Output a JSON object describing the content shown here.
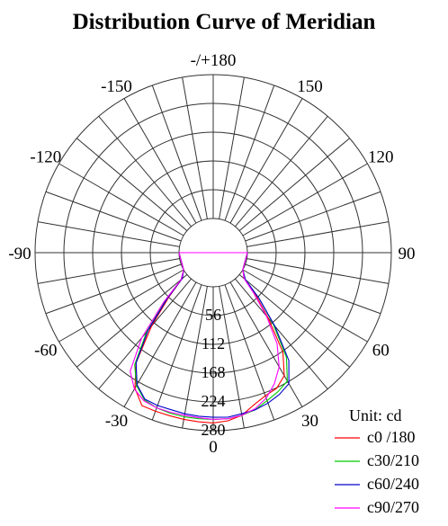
{
  "chart_data": {
    "type": "polar-line",
    "title": "Distribution Curve of  Meridian",
    "unit_label": "Unit: cd",
    "angle_ticks": [
      {
        "angle": 180,
        "label": "-/+180"
      },
      {
        "angle": 150,
        "label": "150"
      },
      {
        "angle": 120,
        "label": "120"
      },
      {
        "angle": 90,
        "label": "90"
      },
      {
        "angle": 60,
        "label": "60"
      },
      {
        "angle": 30,
        "label": "30"
      },
      {
        "angle": 0,
        "label": "0"
      },
      {
        "angle": -30,
        "label": "-30"
      },
      {
        "angle": -60,
        "label": "-60"
      },
      {
        "angle": -90,
        "label": "-90"
      },
      {
        "angle": -120,
        "label": "-120"
      },
      {
        "angle": -150,
        "label": "-150"
      }
    ],
    "radial_ticks": [
      56,
      112,
      168,
      224,
      280
    ],
    "radial_tick_labels": [
      "56",
      "112",
      "168",
      "224",
      "280"
    ],
    "rmax": 280,
    "spoke_step_deg": 10,
    "series": [
      {
        "name": "c0 /180",
        "color": "#ff0000",
        "angles": [
          -90,
          -60,
          -50,
          -45,
          -40,
          -35,
          -30,
          -25,
          -20,
          -15,
          -10,
          -5,
          0,
          5,
          10,
          15,
          20,
          25,
          30,
          35,
          40,
          45,
          50,
          60,
          90
        ],
        "values": [
          0,
          0,
          12,
          55,
          120,
          195,
          238,
          262,
          262,
          262,
          263,
          264,
          265,
          262,
          255,
          240,
          230,
          225,
          210,
          170,
          100,
          50,
          12,
          0,
          0
        ]
      },
      {
        "name": "c30/210",
        "color": "#00cc00",
        "angles": [
          -90,
          -60,
          -50,
          -45,
          -40,
          -35,
          -30,
          -25,
          -20,
          -15,
          -10,
          -5,
          0,
          5,
          10,
          15,
          20,
          25,
          30,
          35,
          40,
          45,
          50,
          60,
          90
        ],
        "values": [
          0,
          0,
          15,
          65,
          135,
          200,
          232,
          250,
          255,
          257,
          258,
          258,
          258,
          258,
          255,
          250,
          240,
          232,
          222,
          182,
          115,
          60,
          15,
          0,
          0
        ]
      },
      {
        "name": "c60/240",
        "color": "#0000cc",
        "angles": [
          -90,
          -60,
          -50,
          -45,
          -40,
          -35,
          -30,
          -25,
          -20,
          -15,
          -10,
          -5,
          0,
          5,
          10,
          15,
          20,
          25,
          30,
          35,
          40,
          45,
          50,
          60,
          90
        ],
        "values": [
          0,
          0,
          12,
          60,
          130,
          195,
          230,
          248,
          250,
          250,
          252,
          253,
          254,
          255,
          252,
          250,
          245,
          238,
          228,
          190,
          120,
          60,
          15,
          0,
          0
        ]
      },
      {
        "name": "c90/270",
        "color": "#ff00ff",
        "angles": [
          -90,
          -60,
          -50,
          -45,
          -40,
          -35,
          -30,
          -25,
          -20,
          -15,
          -10,
          -5,
          0,
          5,
          10,
          15,
          20,
          25,
          30,
          35,
          40,
          45,
          50,
          60,
          90
        ],
        "values": [
          0,
          0,
          15,
          70,
          150,
          215,
          240,
          252,
          255,
          255,
          255,
          256,
          258,
          258,
          255,
          248,
          235,
          215,
          190,
          150,
          95,
          45,
          12,
          0,
          0
        ]
      }
    ]
  }
}
